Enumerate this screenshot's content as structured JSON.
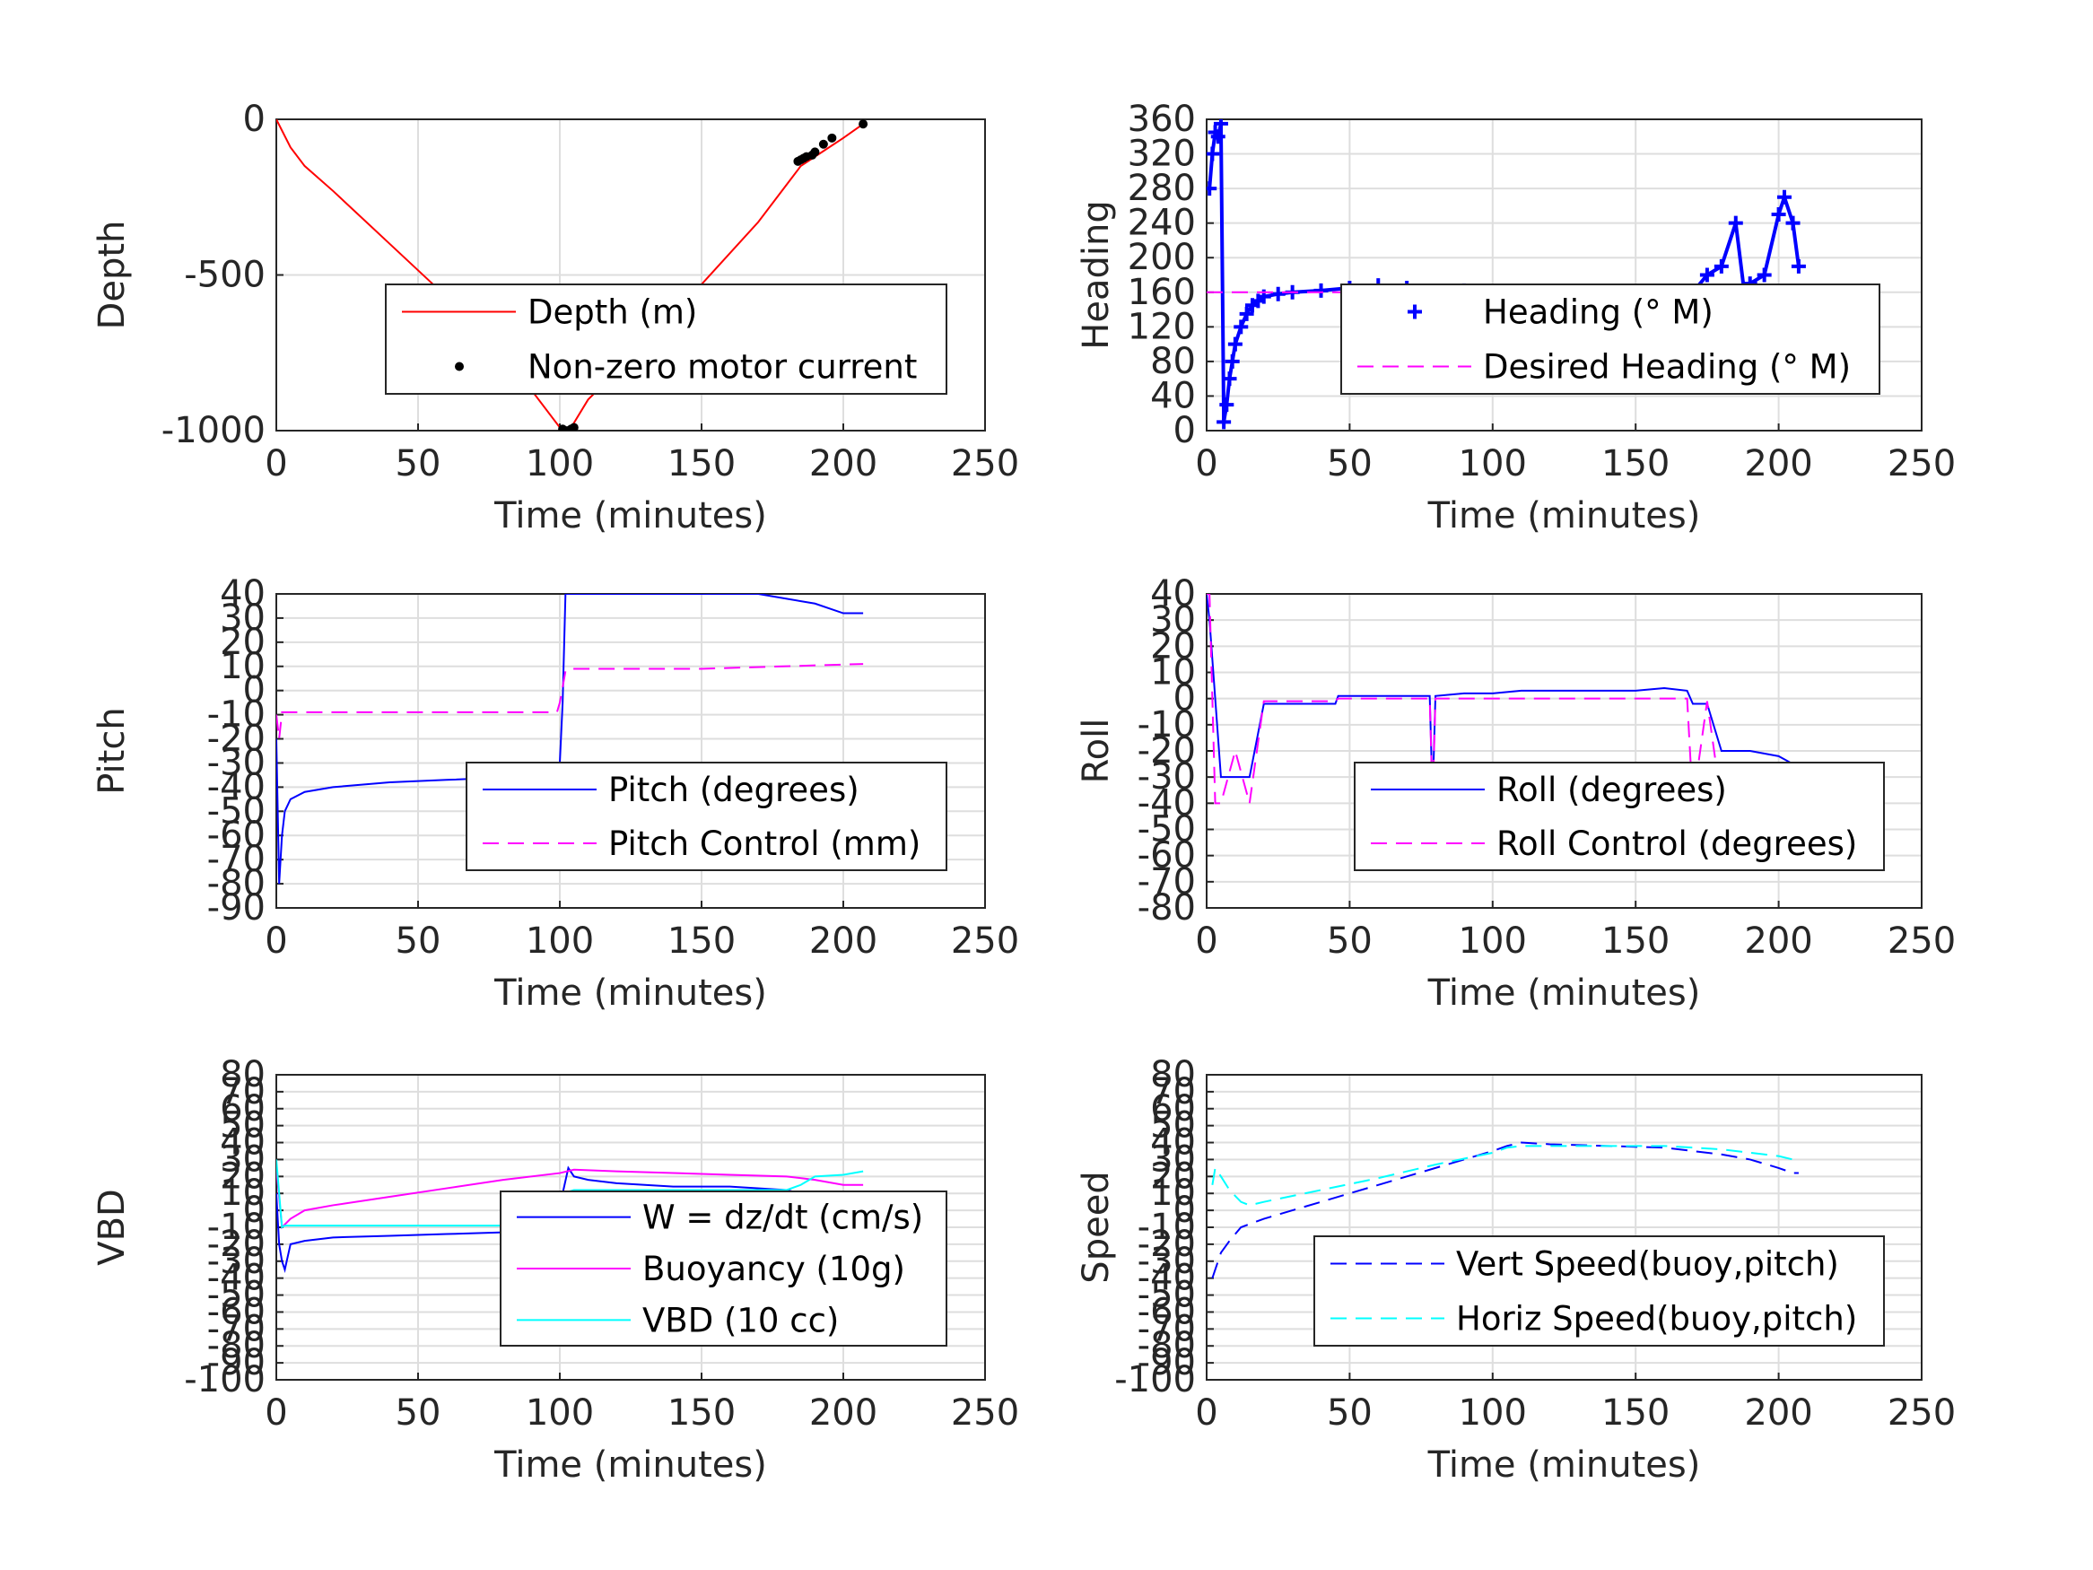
{
  "chart_data": [
    {
      "type": "line",
      "ylabel": "Depth",
      "xlabel": "Time (minutes)",
      "xlim": [
        0,
        250
      ],
      "ylim": [
        -1000,
        0
      ],
      "xticks": [
        "0",
        "50",
        "100",
        "150",
        "200",
        "250"
      ],
      "yticks": [
        "-1000",
        "-500",
        "0"
      ],
      "ytick_values": [
        -1000,
        -500,
        0
      ],
      "grid": true,
      "legend_placement": "center-right",
      "series": [
        {
          "name": "Depth (m)",
          "color": "#ff0000",
          "style": "solid",
          "x": [
            0,
            5,
            10,
            20,
            40,
            60,
            80,
            100,
            102,
            104,
            110,
            130,
            150,
            170,
            180,
            185,
            190,
            200,
            207
          ],
          "y": [
            0,
            -90,
            -150,
            -230,
            -400,
            -570,
            -750,
            -990,
            -1000,
            -990,
            -900,
            -720,
            -530,
            -330,
            -210,
            -150,
            -120,
            -60,
            -15
          ]
        },
        {
          "name": "Non-zero motor current",
          "color": "#000000",
          "style": "dots",
          "x": [
            101,
            102,
            103,
            104,
            105,
            184,
            185,
            186,
            187,
            189,
            190,
            193,
            196,
            207
          ],
          "y": [
            -995,
            -1000,
            -1000,
            -995,
            -990,
            -135,
            -130,
            -125,
            -120,
            -115,
            -105,
            -80,
            -60,
            -15
          ]
        }
      ]
    },
    {
      "type": "line",
      "ylabel": "Heading",
      "xlabel": "Time (minutes)",
      "xlim": [
        0,
        250
      ],
      "ylim": [
        0,
        360
      ],
      "xticks": [
        "0",
        "50",
        "100",
        "150",
        "200",
        "250"
      ],
      "yticks": [
        "0",
        "40",
        "80",
        "120",
        "160",
        "200",
        "240",
        "280",
        "320",
        "360"
      ],
      "ytick_values": [
        0,
        40,
        80,
        120,
        160,
        200,
        240,
        280,
        320,
        360
      ],
      "grid": true,
      "legend_placement": "center-right",
      "series": [
        {
          "name": "Heading (° M)",
          "color": "#0000ff",
          "style": "plus",
          "x": [
            1,
            2,
            3,
            4,
            5,
            6,
            7,
            8,
            9,
            10,
            12,
            14,
            16,
            18,
            20,
            25,
            30,
            40,
            50,
            60,
            70,
            80,
            90,
            100,
            110,
            120,
            130,
            140,
            150,
            160,
            170,
            175,
            180,
            185,
            188,
            190,
            195,
            200,
            202,
            205,
            207
          ],
          "y": [
            280,
            320,
            345,
            340,
            355,
            10,
            30,
            60,
            80,
            100,
            120,
            135,
            145,
            150,
            155,
            158,
            160,
            162,
            165,
            168,
            165,
            160,
            162,
            158,
            150,
            145,
            140,
            150,
            155,
            150,
            160,
            180,
            190,
            240,
            160,
            170,
            180,
            250,
            270,
            240,
            190
          ]
        },
        {
          "name": "Desired Heading (° M)",
          "color": "#ff00ff",
          "style": "dashed",
          "x": [
            0,
            207
          ],
          "y": [
            160,
            160
          ]
        }
      ]
    },
    {
      "type": "line",
      "ylabel": "Pitch",
      "xlabel": "Time (minutes)",
      "xlim": [
        0,
        250
      ],
      "ylim": [
        -90,
        40
      ],
      "xticks": [
        "0",
        "50",
        "100",
        "150",
        "200",
        "250"
      ],
      "yticks": [
        "-90",
        "-80",
        "-70",
        "-60",
        "-50",
        "-40",
        "-30",
        "-20",
        "-10",
        "0",
        "10",
        "20",
        "30",
        "40"
      ],
      "ytick_values": [
        -90,
        -80,
        -70,
        -60,
        -50,
        -40,
        -30,
        -20,
        -10,
        0,
        10,
        20,
        30,
        40
      ],
      "grid": true,
      "legend_placement": "center-right",
      "series": [
        {
          "name": "Pitch (degrees)",
          "color": "#0000ff",
          "style": "solid",
          "x": [
            0,
            1,
            2,
            3,
            5,
            10,
            20,
            40,
            60,
            80,
            99,
            100,
            101,
            102,
            103,
            160,
            170,
            180,
            190,
            200,
            207
          ],
          "y": [
            -20,
            -80,
            -60,
            -50,
            -45,
            -42,
            -40,
            -38,
            -37,
            -36,
            -35,
            -30,
            -5,
            40,
            40,
            40,
            40,
            38,
            36,
            32,
            32
          ]
        },
        {
          "name": "Pitch Control (mm)",
          "color": "#ff00ff",
          "style": "dashed",
          "x": [
            0,
            1,
            2,
            10,
            50,
            99,
            100,
            102,
            103,
            150,
            207
          ],
          "y": [
            -10,
            -20,
            -9,
            -9,
            -9,
            -9,
            -5,
            8,
            9,
            9,
            11
          ]
        }
      ]
    },
    {
      "type": "line",
      "ylabel": "Roll",
      "xlabel": "Time (minutes)",
      "xlim": [
        0,
        250
      ],
      "ylim": [
        -80,
        40
      ],
      "xticks": [
        "0",
        "50",
        "100",
        "150",
        "200",
        "250"
      ],
      "yticks": [
        "-80",
        "-70",
        "-60",
        "-50",
        "-40",
        "-30",
        "-20",
        "-10",
        "0",
        "10",
        "20",
        "30",
        "40"
      ],
      "ytick_values": [
        -80,
        -70,
        -60,
        -50,
        -40,
        -30,
        -20,
        -10,
        0,
        10,
        20,
        30,
        40
      ],
      "grid": true,
      "legend_placement": "center-right",
      "series": [
        {
          "name": "Roll (degrees)",
          "color": "#0000ff",
          "style": "solid",
          "x": [
            0,
            1,
            3,
            5,
            10,
            15,
            20,
            25,
            26,
            45,
            46,
            50,
            60,
            70,
            78,
            79,
            80,
            90,
            100,
            110,
            120,
            130,
            140,
            150,
            160,
            168,
            170,
            175,
            180,
            190,
            200,
            205,
            207
          ],
          "y": [
            40,
            30,
            0,
            -30,
            -30,
            -30,
            -2,
            -2,
            -2,
            -2,
            1,
            1,
            1,
            1,
            1,
            -38,
            1,
            2,
            2,
            3,
            3,
            3,
            3,
            3,
            4,
            3,
            -2,
            -2,
            -20,
            -20,
            -22,
            -25,
            -25
          ]
        },
        {
          "name": "Roll Control (degrees)",
          "color": "#ff00ff",
          "style": "dashed",
          "x": [
            0,
            1,
            3,
            5,
            10,
            15,
            20,
            25,
            26,
            45,
            46,
            50,
            60,
            70,
            78,
            79,
            80,
            90,
            100,
            110,
            120,
            130,
            140,
            150,
            160,
            168,
            170,
            175,
            180,
            190,
            200,
            205,
            207
          ],
          "y": [
            40,
            40,
            -40,
            -40,
            -20,
            -40,
            -1,
            -1,
            -1,
            -1,
            0,
            0,
            0,
            0,
            0,
            -40,
            0,
            0,
            0,
            0,
            0,
            0,
            0,
            0,
            0,
            0,
            -40,
            -1,
            -40,
            -40,
            -40,
            -40,
            -40
          ]
        }
      ]
    },
    {
      "type": "line",
      "ylabel": "VBD",
      "xlabel": "Time (minutes)",
      "xlim": [
        0,
        250
      ],
      "ylim": [
        -100,
        80
      ],
      "xticks": [
        "0",
        "50",
        "100",
        "150",
        "200",
        "250"
      ],
      "yticks": [
        "-100",
        "-90",
        "-80",
        "-70",
        "-60",
        "-50",
        "-40",
        "-30",
        "-20",
        "-10",
        "0",
        "10",
        "20",
        "30",
        "40",
        "50",
        "60",
        "70",
        "80"
      ],
      "ytick_values": [
        -100,
        -90,
        -80,
        -70,
        -60,
        -50,
        -40,
        -30,
        -20,
        -10,
        0,
        10,
        20,
        30,
        40,
        50,
        60,
        70,
        80
      ],
      "grid": true,
      "legend_placement": "center-right",
      "series": [
        {
          "name": "W = dz/dt (cm/s)",
          "color": "#0000ff",
          "style": "solid",
          "x": [
            0,
            1,
            2,
            3,
            5,
            10,
            20,
            40,
            60,
            80,
            99,
            100,
            101,
            103,
            105,
            110,
            120,
            140,
            160,
            180,
            185,
            190,
            200,
            207
          ],
          "y": [
            10,
            -20,
            -30,
            -35,
            -20,
            -18,
            -16,
            -15,
            -14,
            -13,
            -12,
            -5,
            10,
            25,
            20,
            18,
            16,
            14,
            14,
            12,
            10,
            9,
            8,
            10
          ]
        },
        {
          "name": "Buoyancy (10g)",
          "color": "#ff00ff",
          "style": "solid",
          "x": [
            0,
            2,
            5,
            10,
            20,
            40,
            60,
            80,
            100,
            105,
            120,
            140,
            160,
            180,
            190,
            200,
            207
          ],
          "y": [
            25,
            -10,
            -5,
            0,
            3,
            8,
            13,
            18,
            22,
            24,
            23,
            22,
            21,
            20,
            18,
            15,
            15
          ]
        },
        {
          "name": "VBD (10 cc)",
          "color": "#00ffff",
          "style": "solid",
          "x": [
            0,
            1,
            2,
            3,
            10,
            50,
            99,
            100,
            101,
            105,
            150,
            180,
            185,
            190,
            200,
            207
          ],
          "y": [
            30,
            10,
            -10,
            -9,
            -9,
            -9,
            -9,
            0,
            10,
            12,
            12,
            12,
            15,
            20,
            21,
            23
          ]
        }
      ]
    },
    {
      "type": "line",
      "ylabel": "Speed",
      "xlabel": "Time (minutes)",
      "xlim": [
        0,
        250
      ],
      "ylim": [
        -100,
        80
      ],
      "xticks": [
        "0",
        "50",
        "100",
        "150",
        "200",
        "250"
      ],
      "yticks": [
        "-100",
        "-90",
        "-80",
        "-70",
        "-60",
        "-50",
        "-40",
        "-30",
        "-20",
        "-10",
        "0",
        "10",
        "20",
        "30",
        "40",
        "50",
        "60",
        "70",
        "80"
      ],
      "ytick_values": [
        -100,
        -90,
        -80,
        -70,
        -60,
        -50,
        -40,
        -30,
        -20,
        -10,
        0,
        10,
        20,
        30,
        40,
        50,
        60,
        70,
        80
      ],
      "grid": true,
      "legend_placement": "center-right",
      "series": [
        {
          "name": "Vert Speed(buoy,pitch)",
          "color": "#0000ff",
          "style": "dashed",
          "x": [
            2,
            3,
            5,
            8,
            12,
            20,
            40,
            60,
            80,
            100,
            105,
            110,
            120,
            140,
            160,
            180,
            190,
            200,
            205,
            207
          ],
          "y": [
            -40,
            -35,
            -25,
            -18,
            -10,
            -5,
            5,
            15,
            25,
            35,
            38,
            40,
            39,
            38,
            37,
            33,
            30,
            25,
            22,
            22
          ]
        },
        {
          "name": "Horiz Speed(buoy,pitch)",
          "color": "#00ffff",
          "style": "dashed",
          "x": [
            2,
            3,
            5,
            8,
            12,
            15,
            20,
            40,
            60,
            80,
            100,
            105,
            110,
            120,
            140,
            160,
            180,
            190,
            200,
            205,
            207
          ],
          "y": [
            15,
            25,
            20,
            12,
            5,
            3,
            5,
            12,
            19,
            27,
            34,
            37,
            38,
            38,
            38,
            38,
            36,
            34,
            32,
            30,
            30
          ]
        }
      ]
    }
  ]
}
